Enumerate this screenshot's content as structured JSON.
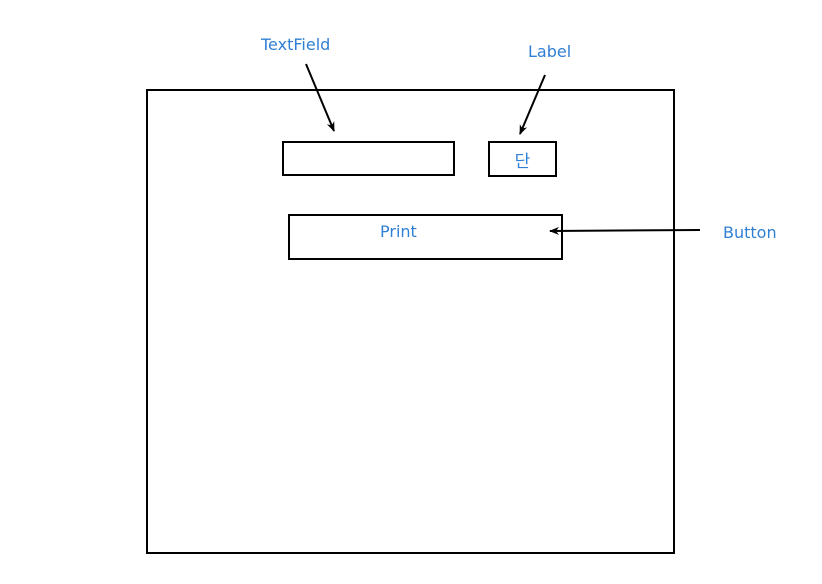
{
  "callouts": {
    "textfield": "TextField",
    "label": "Label",
    "button": "Button"
  },
  "window": {
    "textfield_value": "",
    "label_text": "단",
    "button_label": "Print"
  },
  "colors": {
    "annotation_text": "#2f7fd4",
    "outline": "#000000",
    "background": "#ffffff"
  }
}
